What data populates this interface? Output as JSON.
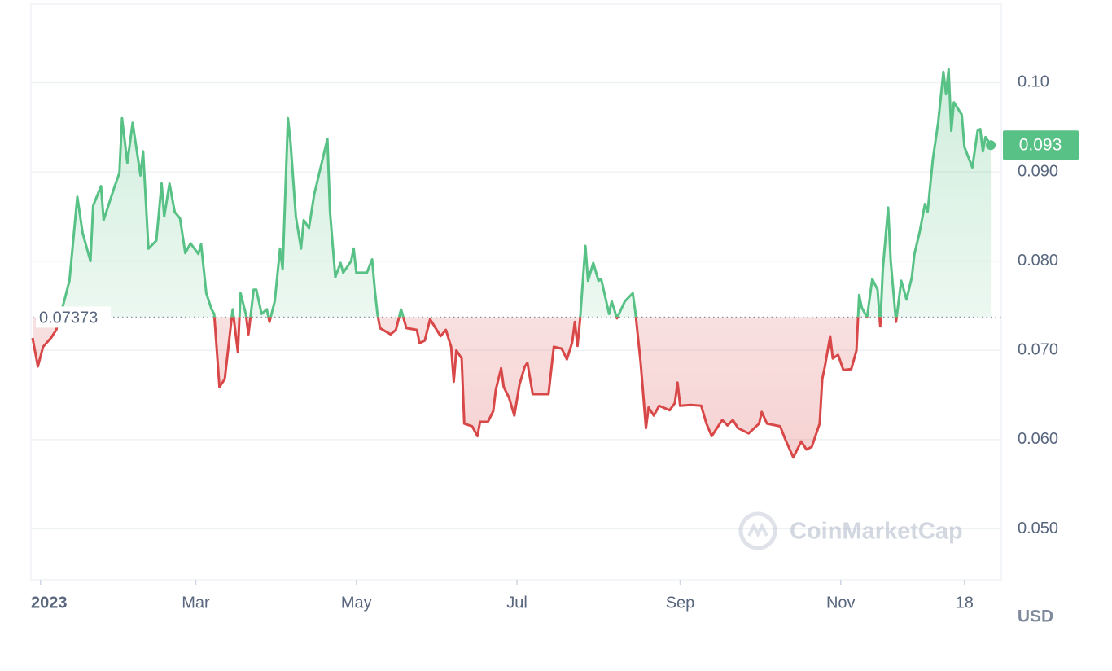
{
  "chart_data": {
    "type": "line",
    "y_axis_label": "USD",
    "watermark": "CoinMarketCap",
    "baseline": 0.07373,
    "current_price": 0.093,
    "color_up": "#58c185",
    "color_down": "#d94848",
    "xlim": [
      "2022-12-29",
      "2024-01-01"
    ],
    "ylim": [
      0.0443,
      0.1088
    ],
    "grid": true,
    "xticks": [
      {
        "value": "2023-01-01",
        "label": "2023"
      },
      {
        "value": "2023-03-01",
        "label": "Mar"
      },
      {
        "value": "2023-05-01",
        "label": "May"
      },
      {
        "value": "2023-07-01",
        "label": "Jul"
      },
      {
        "value": "2023-09-01",
        "label": "Sep"
      },
      {
        "value": "2023-11-01",
        "label": "Nov"
      },
      {
        "value": "2023-12-18",
        "label": "18"
      }
    ],
    "yticks": [
      {
        "value": 0.05,
        "label": "0.050"
      },
      {
        "value": 0.06,
        "label": "0.060"
      },
      {
        "value": 0.07,
        "label": "0.070"
      },
      {
        "value": 0.08,
        "label": "0.080"
      },
      {
        "value": 0.09,
        "label": "0.090"
      },
      {
        "value": 0.1,
        "label": "0.10"
      }
    ],
    "x": [
      "2022-12-29",
      "2022-12-31",
      "2023-01-02",
      "2023-01-05",
      "2023-01-07",
      "2023-01-10",
      "2023-01-12",
      "2023-01-15",
      "2023-01-17",
      "2023-01-20",
      "2023-01-21",
      "2023-01-24",
      "2023-01-25",
      "2023-01-29",
      "2023-01-31",
      "2023-02-01",
      "2023-02-03",
      "2023-02-05",
      "2023-02-08",
      "2023-02-09",
      "2023-02-11",
      "2023-02-14",
      "2023-02-16",
      "2023-02-17",
      "2023-02-19",
      "2023-02-21",
      "2023-02-23",
      "2023-02-25",
      "2023-02-27",
      "2023-03-02",
      "2023-03-03",
      "2023-03-05",
      "2023-03-07",
      "2023-03-08",
      "2023-03-10",
      "2023-03-12",
      "2023-03-15",
      "2023-03-17",
      "2023-03-18",
      "2023-03-20",
      "2023-03-21",
      "2023-03-23",
      "2023-03-24",
      "2023-03-26",
      "2023-03-28",
      "2023-03-29",
      "2023-03-31",
      "2023-04-02",
      "2023-04-03",
      "2023-04-05",
      "2023-04-06",
      "2023-04-08",
      "2023-04-10",
      "2023-04-11",
      "2023-04-13",
      "2023-04-15",
      "2023-04-16",
      "2023-04-20",
      "2023-04-21",
      "2023-04-23",
      "2023-04-25",
      "2023-04-26",
      "2023-04-29",
      "2023-04-30",
      "2023-05-01",
      "2023-05-05",
      "2023-05-07",
      "2023-05-08",
      "2023-05-09",
      "2023-05-10",
      "2023-05-14",
      "2023-05-16",
      "2023-05-18",
      "2023-05-20",
      "2023-05-24",
      "2023-05-25",
      "2023-05-27",
      "2023-05-29",
      "2023-06-02",
      "2023-06-04",
      "2023-06-06",
      "2023-06-07",
      "2023-06-08",
      "2023-06-10",
      "2023-06-11",
      "2023-06-14",
      "2023-06-16",
      "2023-06-17",
      "2023-06-20",
      "2023-06-22",
      "2023-06-23",
      "2023-06-25",
      "2023-06-26",
      "2023-06-28",
      "2023-06-30",
      "2023-07-02",
      "2023-07-04",
      "2023-07-05",
      "2023-07-07",
      "2023-07-11",
      "2023-07-13",
      "2023-07-15",
      "2023-07-18",
      "2023-07-20",
      "2023-07-22",
      "2023-07-23",
      "2023-07-24",
      "2023-07-25",
      "2023-07-27",
      "2023-07-28",
      "2023-07-30",
      "2023-08-01",
      "2023-08-02",
      "2023-08-05",
      "2023-08-06",
      "2023-08-08",
      "2023-08-11",
      "2023-08-14",
      "2023-08-15",
      "2023-08-17",
      "2023-08-19",
      "2023-08-20",
      "2023-08-22",
      "2023-08-24",
      "2023-08-28",
      "2023-08-30",
      "2023-08-31",
      "2023-09-01",
      "2023-09-05",
      "2023-09-09",
      "2023-09-11",
      "2023-09-13",
      "2023-09-17",
      "2023-09-19",
      "2023-09-21",
      "2023-09-23",
      "2023-09-27",
      "2023-10-01",
      "2023-10-02",
      "2023-10-04",
      "2023-10-09",
      "2023-10-11",
      "2023-10-14",
      "2023-10-16",
      "2023-10-17",
      "2023-10-19",
      "2023-10-21",
      "2023-10-24",
      "2023-10-25",
      "2023-10-26",
      "2023-10-28",
      "2023-10-29",
      "2023-10-31",
      "2023-11-02",
      "2023-11-05",
      "2023-11-07",
      "2023-11-08",
      "2023-11-09",
      "2023-11-11",
      "2023-11-13",
      "2023-11-15",
      "2023-11-16",
      "2023-11-17",
      "2023-11-19",
      "2023-11-20",
      "2023-11-22",
      "2023-11-24",
      "2023-11-26",
      "2023-11-28",
      "2023-11-29",
      "2023-12-01",
      "2023-12-03",
      "2023-12-04",
      "2023-12-06",
      "2023-12-08",
      "2023-12-10",
      "2023-12-11",
      "2023-12-12",
      "2023-12-13",
      "2023-12-14",
      "2023-12-17",
      "2023-12-18",
      "2023-12-21",
      "2023-12-23",
      "2023-12-24",
      "2023-12-25",
      "2023-12-26",
      "2023-12-28"
    ],
    "values": [
      0.0714,
      0.0682,
      0.0704,
      0.0714,
      0.0723,
      0.0755,
      0.0778,
      0.0872,
      0.0832,
      0.08,
      0.0862,
      0.0884,
      0.0846,
      0.0882,
      0.0899,
      0.096,
      0.091,
      0.0955,
      0.0896,
      0.0923,
      0.0814,
      0.0823,
      0.0887,
      0.085,
      0.0887,
      0.0855,
      0.0848,
      0.0809,
      0.082,
      0.0808,
      0.0819,
      0.0764,
      0.0746,
      0.0741,
      0.0659,
      0.0668,
      0.0746,
      0.0698,
      0.0764,
      0.0741,
      0.0718,
      0.0768,
      0.0768,
      0.0741,
      0.0746,
      0.0732,
      0.0755,
      0.0814,
      0.0791,
      0.096,
      0.0933,
      0.085,
      0.0814,
      0.0846,
      0.0837,
      0.0875,
      0.0887,
      0.0937,
      0.0855,
      0.0782,
      0.0798,
      0.0787,
      0.08,
      0.0814,
      0.0787,
      0.0787,
      0.0802,
      0.0768,
      0.0741,
      0.0725,
      0.0718,
      0.0723,
      0.0746,
      0.0725,
      0.0723,
      0.0708,
      0.0711,
      0.0735,
      0.0716,
      0.0723,
      0.0704,
      0.0665,
      0.07,
      0.0691,
      0.0618,
      0.0615,
      0.0604,
      0.062,
      0.062,
      0.0632,
      0.0656,
      0.068,
      0.0659,
      0.0647,
      0.0627,
      0.0662,
      0.0682,
      0.0686,
      0.0651,
      0.0651,
      0.0651,
      0.0704,
      0.0702,
      0.069,
      0.0709,
      0.0732,
      0.0705,
      0.0735,
      0.0817,
      0.0778,
      0.0798,
      0.0778,
      0.078,
      0.0741,
      0.0755,
      0.0736,
      0.0755,
      0.0764,
      0.0743,
      0.0686,
      0.0613,
      0.0636,
      0.0627,
      0.0638,
      0.0633,
      0.0641,
      0.0664,
      0.0638,
      0.0639,
      0.0638,
      0.0618,
      0.0604,
      0.0622,
      0.0616,
      0.0622,
      0.0613,
      0.0607,
      0.0618,
      0.0631,
      0.0618,
      0.0615,
      0.06,
      0.058,
      0.0592,
      0.0598,
      0.0589,
      0.0592,
      0.0618,
      0.0668,
      0.0682,
      0.0716,
      0.0691,
      0.0695,
      0.0678,
      0.0679,
      0.07,
      0.0762,
      0.0748,
      0.0737,
      0.078,
      0.0768,
      0.0727,
      0.0791,
      0.086,
      0.08,
      0.0732,
      0.0778,
      0.0757,
      0.0782,
      0.0808,
      0.0833,
      0.0864,
      0.0855,
      0.0914,
      0.0955,
      0.1012,
      0.0987,
      0.1015,
      0.0946,
      0.0978,
      0.0964,
      0.0928,
      0.0905,
      0.0946,
      0.0948,
      0.0923,
      0.0939,
      0.093
    ]
  }
}
